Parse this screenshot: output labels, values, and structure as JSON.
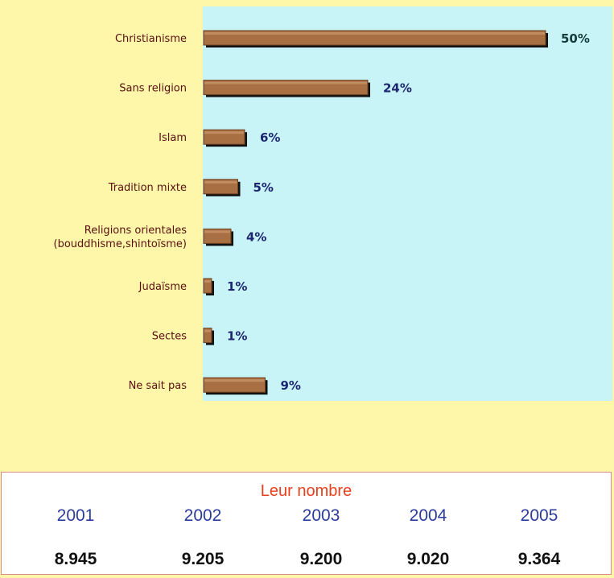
{
  "chart_data": {
    "type": "bar",
    "orientation": "horizontal",
    "categories": [
      [
        "Christianisme"
      ],
      [
        "Sans religion"
      ],
      [
        "Islam"
      ],
      [
        "Tradition mixte"
      ],
      [
        "Religions orientales",
        "(bouddhisme,shintoïsme)"
      ],
      [
        "Judaïsme"
      ],
      [
        "Sectes"
      ],
      [
        "Ne sait pas"
      ]
    ],
    "values": [
      50,
      24,
      6,
      5,
      4,
      1,
      1,
      9
    ],
    "value_labels": [
      "50%",
      "24%",
      "6%",
      "5%",
      "4%",
      "1%",
      "1%",
      "9%"
    ],
    "unit": "%",
    "xlim": [
      0,
      55
    ],
    "grid": false,
    "colors": {
      "plot_background": "#c8f4f8",
      "page_background": "#fef6a8",
      "bar_fill": "#a86f43",
      "bar_shadow": "#111111",
      "category_label": "#5a1010",
      "value_label": "#1c2670",
      "value_label_top": "#153b3b"
    }
  },
  "table": {
    "title": "Leur nombre",
    "years": [
      "2001",
      "2002",
      "2003",
      "2004",
      "2005"
    ],
    "counts": [
      "8.945",
      "9.205",
      "9.200",
      "9.020",
      "9.364"
    ],
    "colors": {
      "title": "#e8401c",
      "years": "#2c3c9c",
      "counts": "#111111"
    }
  }
}
